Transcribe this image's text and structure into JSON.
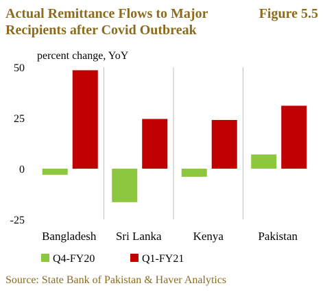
{
  "title": "Actual Remittance Flows to Major Recipients after Covid Outbreak",
  "figure_label": "Figure 5.5",
  "source": "Source: State Bank of Pakistan & Haver Analytics",
  "colors": {
    "series1": "#8DC63F",
    "series2": "#C00000",
    "gridline": "#BFBFBF",
    "title": "#8B6B1F"
  },
  "chart_data": {
    "type": "bar",
    "title": "Actual Remittance Flows to Major Recipients after Covid Outbreak",
    "ylabel": "percent change, YoY",
    "xlabel": "",
    "categories": [
      "Bangladesh",
      "Sri Lanka",
      "Kenya",
      "Pakistan"
    ],
    "series": [
      {
        "name": "Q4-FY20",
        "values": [
          -3,
          -16.5,
          -4,
          7
        ]
      },
      {
        "name": "Q1-FY21",
        "values": [
          48.5,
          24.5,
          24,
          31
        ]
      }
    ],
    "ylim": [
      -25,
      50
    ],
    "yticks": [
      50,
      25,
      0,
      -25
    ],
    "grid": "vertical separators",
    "legend": "bottom-left"
  }
}
